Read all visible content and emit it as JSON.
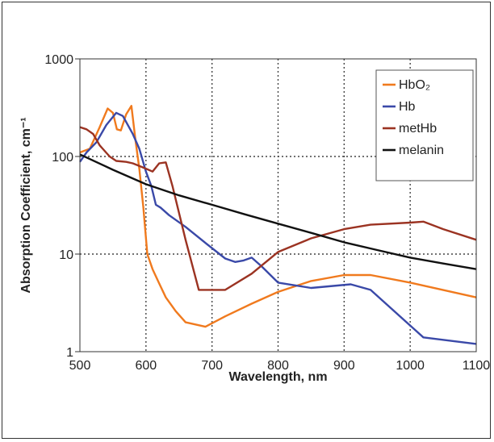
{
  "chart_data": {
    "type": "line",
    "title": "",
    "xlabel": "Wavelength, nm",
    "ylabel": "Absorption Coefficient, cm⁻¹",
    "xlim": [
      500,
      1100
    ],
    "ylim": [
      1,
      1000
    ],
    "yscale": "log",
    "grid": true,
    "legend_position": "top-right",
    "x_ticks": [
      500,
      600,
      700,
      800,
      900,
      1000,
      1100
    ],
    "x_tick_labels": [
      "500",
      "600",
      "700",
      "800",
      "900",
      "1000",
      "1100"
    ],
    "y_ticks": [
      1,
      10,
      100,
      1000
    ],
    "y_tick_labels": [
      "1",
      "10",
      "100",
      "1000"
    ],
    "series": [
      {
        "name": "HbO₂",
        "color": "#f07a1e",
        "points": [
          [
            500,
            110
          ],
          [
            515,
            120
          ],
          [
            530,
            200
          ],
          [
            542,
            310
          ],
          [
            550,
            280
          ],
          [
            556,
            190
          ],
          [
            562,
            185
          ],
          [
            570,
            270
          ],
          [
            578,
            330
          ],
          [
            584,
            150
          ],
          [
            590,
            75
          ],
          [
            596,
            30
          ],
          [
            602,
            10
          ],
          [
            610,
            7
          ],
          [
            620,
            5
          ],
          [
            630,
            3.6
          ],
          [
            645,
            2.6
          ],
          [
            660,
            2.0
          ],
          [
            690,
            1.8
          ],
          [
            720,
            2.3
          ],
          [
            760,
            3.1
          ],
          [
            800,
            4.1
          ],
          [
            850,
            5.3
          ],
          [
            900,
            6.1
          ],
          [
            940,
            6.1
          ],
          [
            1000,
            5.1
          ],
          [
            1100,
            3.6
          ]
        ]
      },
      {
        "name": "Hb",
        "color": "#3a49a8",
        "points": [
          [
            500,
            88
          ],
          [
            510,
            110
          ],
          [
            525,
            140
          ],
          [
            540,
            210
          ],
          [
            555,
            280
          ],
          [
            565,
            260
          ],
          [
            580,
            170
          ],
          [
            590,
            120
          ],
          [
            600,
            70
          ],
          [
            608,
            50
          ],
          [
            615,
            32
          ],
          [
            622,
            30
          ],
          [
            635,
            25
          ],
          [
            660,
            19
          ],
          [
            690,
            13
          ],
          [
            720,
            9
          ],
          [
            735,
            8.3
          ],
          [
            748,
            8.6
          ],
          [
            760,
            9.2
          ],
          [
            775,
            7.5
          ],
          [
            800,
            5.1
          ],
          [
            850,
            4.5
          ],
          [
            910,
            4.9
          ],
          [
            940,
            4.3
          ],
          [
            1020,
            1.4
          ],
          [
            1100,
            1.2
          ]
        ]
      },
      {
        "name": "metHb",
        "color": "#9b3322",
        "points": [
          [
            500,
            200
          ],
          [
            510,
            190
          ],
          [
            520,
            170
          ],
          [
            530,
            130
          ],
          [
            545,
            100
          ],
          [
            555,
            90
          ],
          [
            570,
            88
          ],
          [
            580,
            85
          ],
          [
            590,
            80
          ],
          [
            600,
            75
          ],
          [
            610,
            70
          ],
          [
            620,
            85
          ],
          [
            630,
            87
          ],
          [
            640,
            50
          ],
          [
            660,
            14
          ],
          [
            680,
            4.3
          ],
          [
            720,
            4.3
          ],
          [
            760,
            6.3
          ],
          [
            800,
            10.5
          ],
          [
            850,
            14.5
          ],
          [
            900,
            18
          ],
          [
            940,
            20
          ],
          [
            1000,
            21
          ],
          [
            1020,
            21.5
          ],
          [
            1050,
            18
          ],
          [
            1100,
            14
          ]
        ]
      },
      {
        "name": "melanin",
        "color": "#111111",
        "points": [
          [
            500,
            105
          ],
          [
            550,
            73
          ],
          [
            600,
            52
          ],
          [
            650,
            40
          ],
          [
            700,
            32
          ],
          [
            750,
            25.5
          ],
          [
            800,
            20.5
          ],
          [
            850,
            16.5
          ],
          [
            900,
            13.2
          ],
          [
            950,
            11
          ],
          [
            1000,
            9.2
          ],
          [
            1050,
            8
          ],
          [
            1100,
            7
          ]
        ]
      }
    ]
  }
}
